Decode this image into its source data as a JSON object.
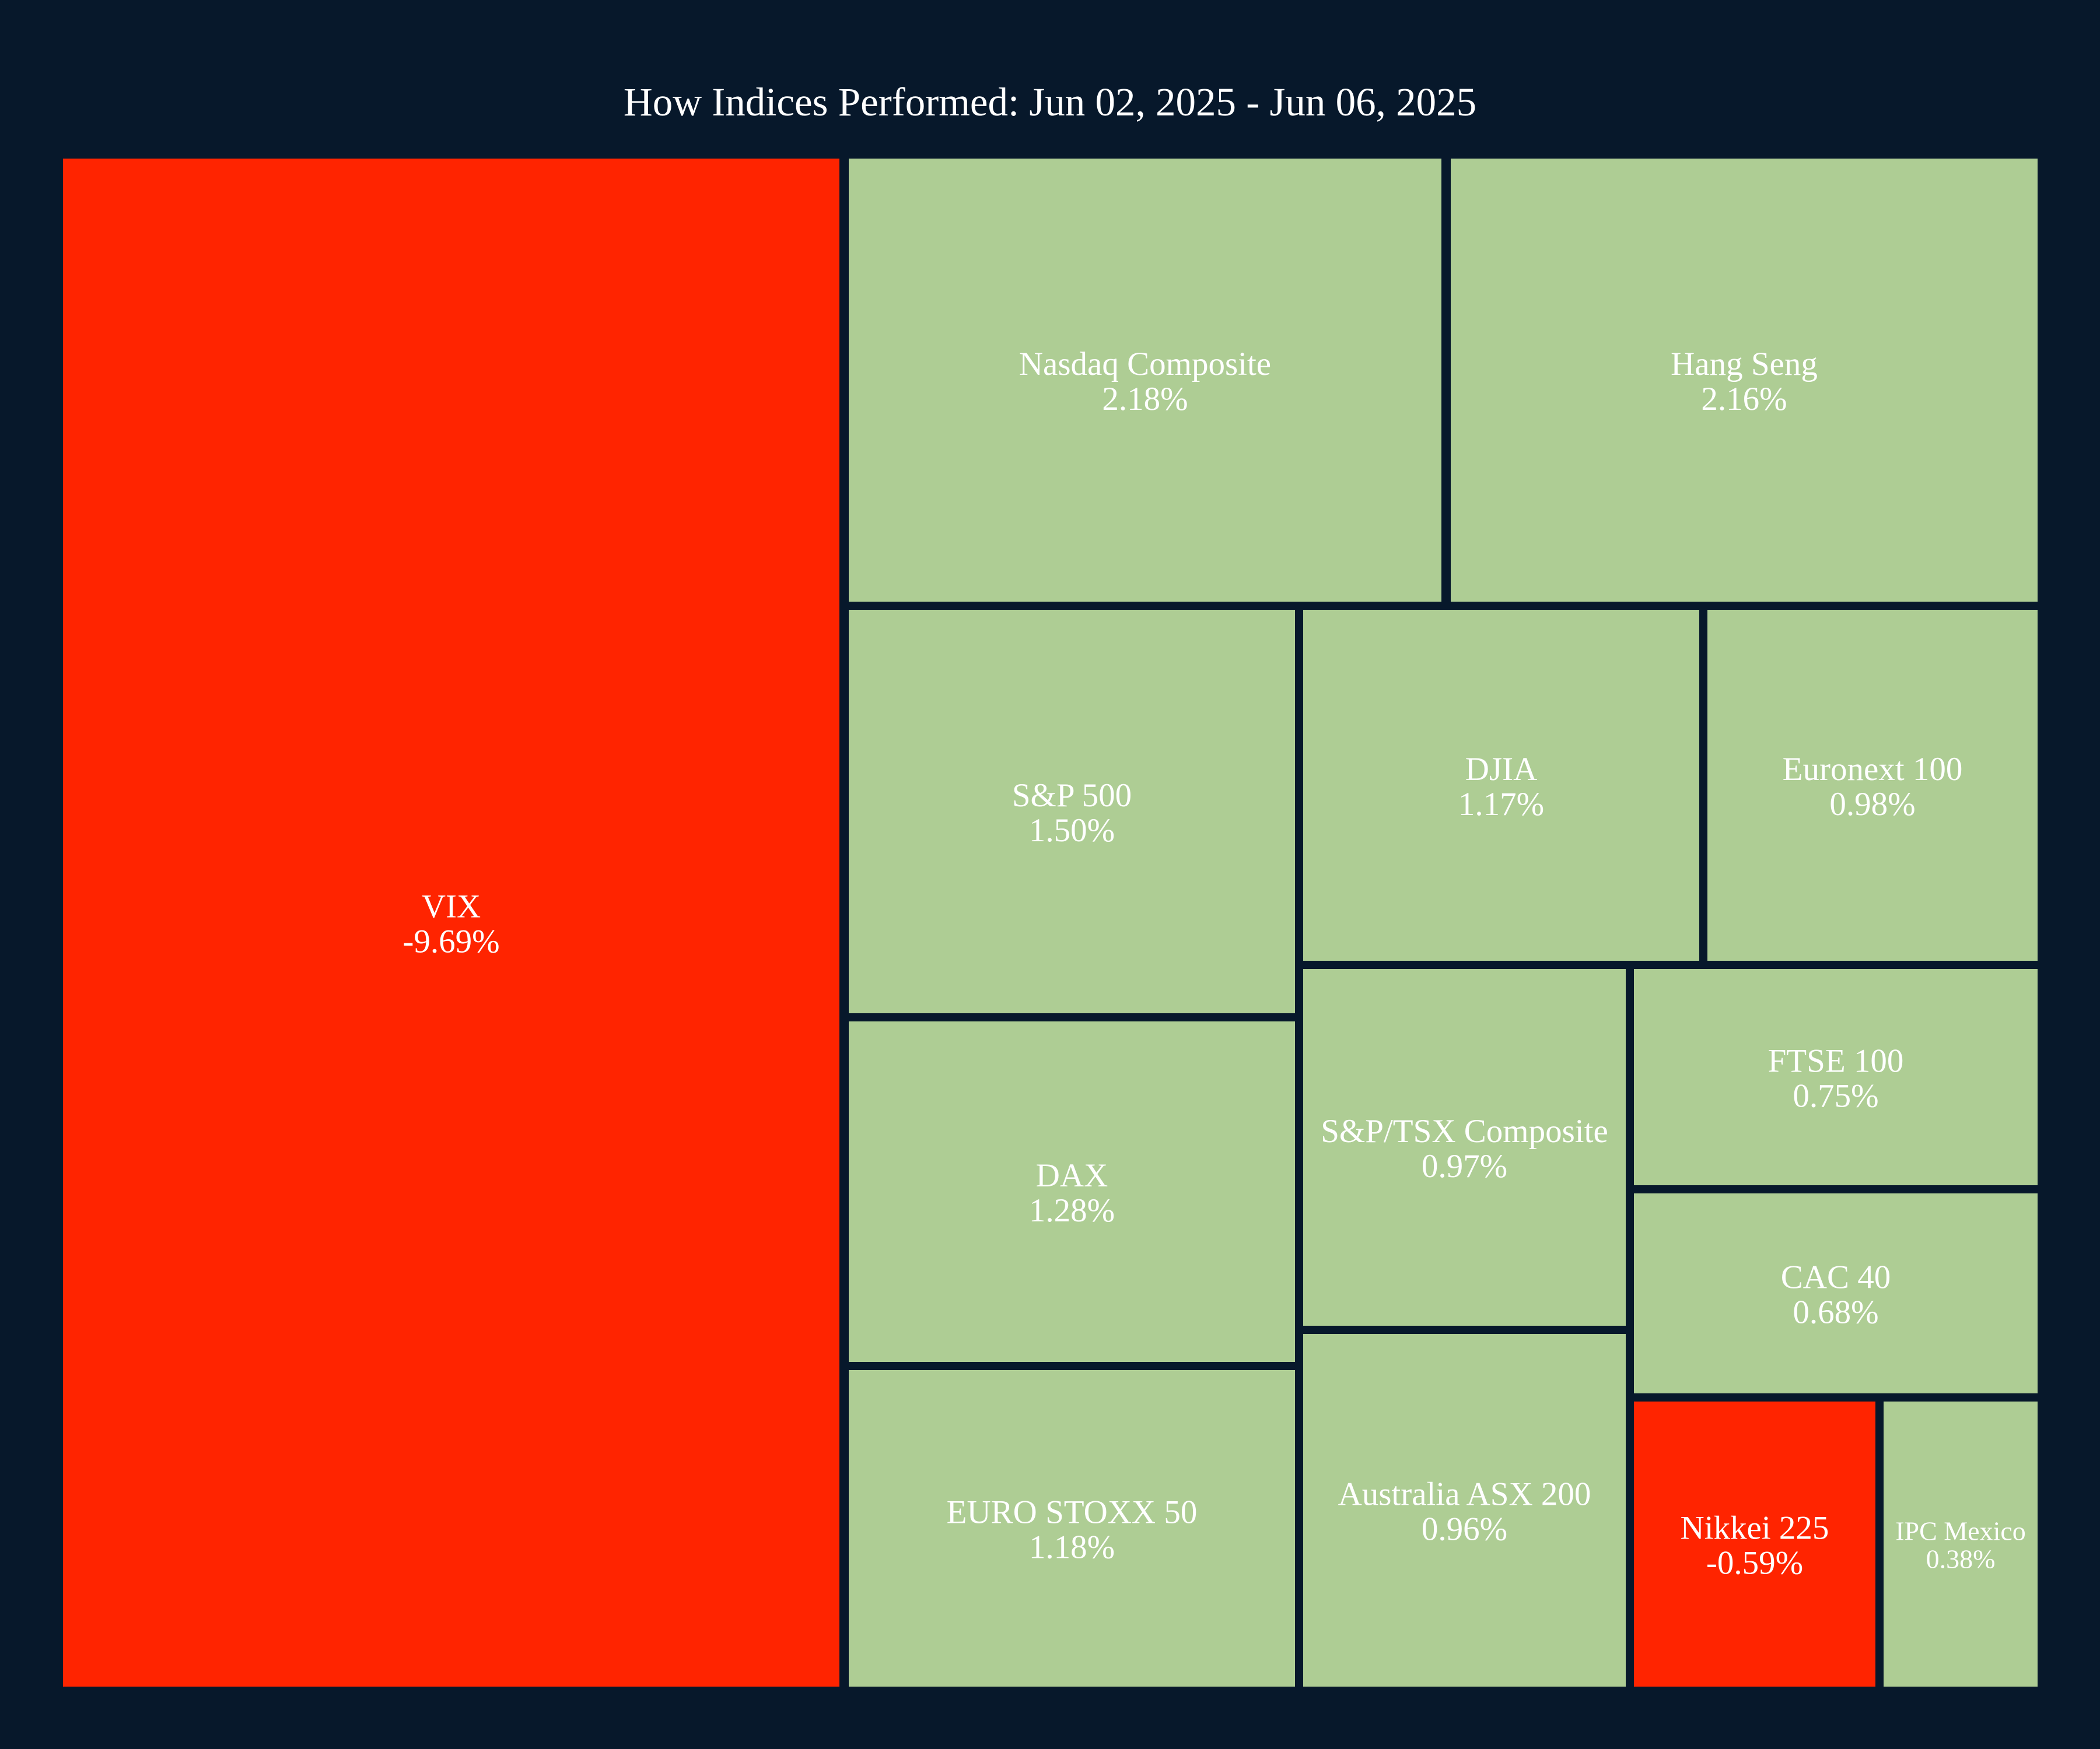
{
  "chart_data": {
    "type": "treemap",
    "title": "How Indices Performed: Jun 02, 2025 - Jun 06, 2025",
    "value_format": "percent change",
    "colors": {
      "negative": "#ff2400",
      "positive": "#aecd94",
      "background": "#07182b",
      "text": "#ffffff"
    },
    "items": [
      {
        "name": "VIX",
        "value": -9.69,
        "label": "-9.69%"
      },
      {
        "name": "Nasdaq Composite",
        "value": 2.18,
        "label": "2.18%"
      },
      {
        "name": "Hang Seng",
        "value": 2.16,
        "label": "2.16%"
      },
      {
        "name": "S&P 500",
        "value": 1.5,
        "label": "1.50%"
      },
      {
        "name": "DJIA",
        "value": 1.17,
        "label": "1.17%"
      },
      {
        "name": "Euronext 100",
        "value": 0.98,
        "label": "0.98%"
      },
      {
        "name": "DAX",
        "value": 1.28,
        "label": "1.28%"
      },
      {
        "name": "S&P/TSX Composite",
        "value": 0.97,
        "label": "0.97%"
      },
      {
        "name": "FTSE 100",
        "value": 0.75,
        "label": "0.75%"
      },
      {
        "name": "CAC 40",
        "value": 0.68,
        "label": "0.68%"
      },
      {
        "name": "EURO STOXX 50",
        "value": 1.18,
        "label": "1.18%"
      },
      {
        "name": "Australia ASX 200",
        "value": 0.96,
        "label": "0.96%"
      },
      {
        "name": "Nikkei 225",
        "value": -0.59,
        "label": "-0.59%"
      },
      {
        "name": "IPC Mexico",
        "value": 0.38,
        "label": "0.38%"
      }
    ]
  }
}
